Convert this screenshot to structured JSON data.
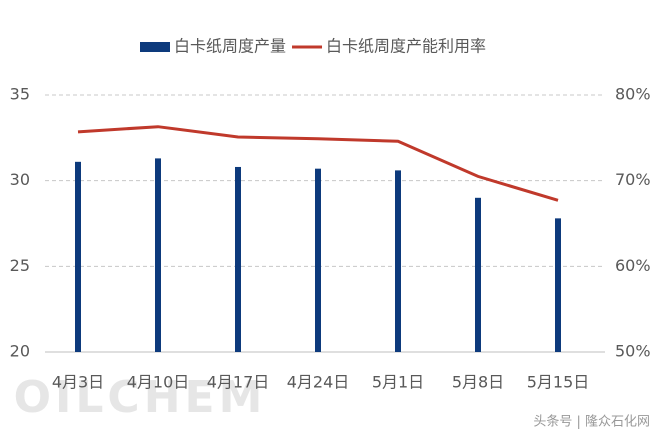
{
  "chart_data": {
    "type": "bar-line",
    "categories": [
      "4月3日",
      "4月10日",
      "4月17日",
      "4月24日",
      "5月1日",
      "5月8日",
      "5月15日"
    ],
    "series": [
      {
        "name": "白卡纸周度产量",
        "type": "bar",
        "color": "#0d3a7c",
        "values": [
          31.1,
          31.3,
          30.8,
          30.7,
          30.6,
          29.0,
          27.8
        ]
      },
      {
        "name": "白卡纸周度产能利用率",
        "type": "line",
        "axis": "y2",
        "color": "#c0392b",
        "values": [
          75.7,
          76.3,
          75.1,
          74.9,
          74.6,
          70.5,
          67.7
        ]
      }
    ],
    "ylim": [
      20,
      35
    ],
    "yticks": [
      20,
      25,
      30,
      35
    ],
    "y2lim": [
      50,
      80
    ],
    "y2ticks": [
      {
        "value": 50,
        "label": "50%"
      },
      {
        "value": 60,
        "label": "60%"
      },
      {
        "value": 70,
        "label": "70%"
      },
      {
        "value": 80,
        "label": "80%"
      }
    ],
    "grid": true,
    "legend": "top",
    "watermarks": [
      "OILCHEM",
      "头条号 | 隆众石化网"
    ]
  }
}
